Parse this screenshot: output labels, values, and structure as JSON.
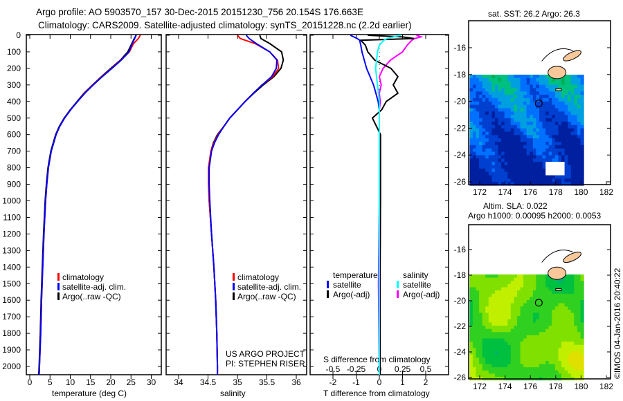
{
  "header": {
    "title_line1": "Argo profile: AO 5903570_157 30-Dec-2015 20151230_756 20.154S 176.663E",
    "title_line2": "Climatology: CARS2009. Satellite-adjusted climatology: synTS_20151228.nc (2.2d earlier)"
  },
  "colors": {
    "climatology": "#ff0000",
    "satellite": "#0000ff",
    "argo": "#000000",
    "sal_satellite": "#00ffff",
    "sal_argo": "#ff00ff",
    "land": "#f8c89a"
  },
  "chart_data": [
    {
      "type": "line",
      "title": "",
      "xlabel": "temperature (deg C)",
      "ylabel": "",
      "xlim": [
        -0.8,
        32.5
      ],
      "ylim": [
        2050,
        0
      ],
      "xticks": [
        "0",
        "5",
        "10",
        "15",
        "20",
        "25",
        "30"
      ],
      "xtick_values": [
        0,
        5,
        10,
        15,
        20,
        25,
        30
      ],
      "yticks": [
        "0",
        "100",
        "200",
        "300",
        "400",
        "500",
        "600",
        "700",
        "800",
        "900",
        "1000",
        "1100",
        "1200",
        "1300",
        "1400",
        "1500",
        "1600",
        "1700",
        "1800",
        "1900",
        "2000"
      ],
      "legend": [
        "climatology",
        "satellite-adj. clim.",
        "Argo(..raw -QC)"
      ],
      "depth": [
        0,
        20,
        50,
        100,
        150,
        200,
        250,
        300,
        350,
        400,
        450,
        500,
        550,
        600,
        700,
        800,
        900,
        1000,
        1200,
        1400,
        1600,
        1800,
        2000,
        2050
      ],
      "series": [
        {
          "name": "climatology",
          "values": [
            27.3,
            26.8,
            25.6,
            24.6,
            22.5,
            20.2,
            17.8,
            15.6,
            13.5,
            11.8,
            10.1,
            8.6,
            7.4,
            6.5,
            5.3,
            4.6,
            4.2,
            3.9,
            3.5,
            3.2,
            2.9,
            2.7,
            2.4,
            2.3
          ]
        },
        {
          "name": "satellite-adj. clim.",
          "values": [
            26.2,
            25.9,
            25.3,
            24.5,
            22.6,
            20.3,
            17.9,
            15.7,
            13.6,
            11.8,
            10.1,
            8.6,
            7.4,
            6.5,
            5.3,
            4.6,
            4.2,
            3.9,
            3.5,
            3.2,
            2.9,
            2.7,
            2.4,
            2.3
          ]
        },
        {
          "name": "Argo(..raw -QC)",
          "values": [
            26.3,
            25.8,
            25.2,
            24.2,
            22.4,
            20.0,
            17.7,
            15.5,
            13.4,
            11.7,
            10.0,
            8.5,
            7.3,
            6.4,
            5.2,
            4.5,
            4.1,
            3.8,
            3.4,
            3.1,
            2.8,
            2.6,
            2.3,
            2.2
          ]
        }
      ]
    },
    {
      "type": "line",
      "xlabel": "salinity",
      "xlim": [
        33.8,
        36.2
      ],
      "ylim": [
        2050,
        0
      ],
      "xticks": [
        "34",
        "34.5",
        "35",
        "35.5",
        "36"
      ],
      "xtick_values": [
        34,
        34.5,
        35,
        35.5,
        36
      ],
      "legend": [
        "climatology",
        "satellite-adj. clim.",
        "Argo(..raw -QC)"
      ],
      "annotation": [
        "US ARGO PROJECT",
        "PI: STEPHEN RISER"
      ],
      "depth": [
        0,
        20,
        50,
        100,
        150,
        200,
        250,
        300,
        350,
        400,
        450,
        500,
        550,
        600,
        650,
        700,
        800,
        900,
        1000,
        1200,
        1400,
        1600,
        1800,
        2000,
        2050
      ],
      "series": [
        {
          "name": "climatology",
          "values": [
            35.0,
            35.05,
            35.3,
            35.55,
            35.68,
            35.7,
            35.6,
            35.42,
            35.27,
            35.13,
            35.0,
            34.87,
            34.77,
            34.67,
            34.6,
            34.55,
            34.51,
            34.51,
            34.52,
            34.56,
            34.6,
            34.63,
            34.65,
            34.66,
            34.66
          ]
        },
        {
          "name": "satellite-adj. clim.",
          "values": [
            35.15,
            35.2,
            35.32,
            35.55,
            35.67,
            35.66,
            35.58,
            35.42,
            35.27,
            35.13,
            35.0,
            34.87,
            34.77,
            34.68,
            34.61,
            34.56,
            34.52,
            34.52,
            34.53,
            34.56,
            34.6,
            34.63,
            34.65,
            34.66,
            34.66
          ]
        },
        {
          "name": "Argo(..raw -QC)",
          "values": [
            35.38,
            35.4,
            35.55,
            35.75,
            35.78,
            35.74,
            35.62,
            35.44,
            35.28,
            35.13,
            35.0,
            34.87,
            34.77,
            34.66,
            34.59,
            34.55,
            34.51,
            34.51,
            34.52,
            34.56,
            34.6,
            34.63,
            34.65,
            34.66,
            34.66
          ]
        }
      ]
    },
    {
      "type": "line",
      "xlabel": "T difference from climatology",
      "xlabel2": "S difference from climatology",
      "xlim": [
        -3,
        3
      ],
      "ylim": [
        2050,
        0
      ],
      "xticks": [
        "-2",
        "-1",
        "0",
        "1",
        "2"
      ],
      "xtick_values": [
        -2,
        -1,
        0,
        1,
        2
      ],
      "xticks2": [
        "-0.5",
        "-0.25",
        "0",
        "0.25",
        "0.5"
      ],
      "xtick2_values": [
        -0.5,
        -0.25,
        0,
        0.25,
        0.5
      ],
      "legend_temperature": {
        "title": "temperature",
        "items": [
          "satellite",
          "Argo(-adj)"
        ]
      },
      "legend_salinity": {
        "title": "salinity",
        "items": [
          "satellite",
          "Argo(-adj)"
        ]
      },
      "depth": [
        0,
        10,
        20,
        30,
        60,
        100,
        150,
        200,
        250,
        300,
        350,
        400,
        450,
        500,
        600,
        800,
        1000,
        1500,
        2050
      ],
      "series": [
        {
          "name": "T satellite",
          "units": "T",
          "values": [
            -1.25,
            -1.1,
            -0.95,
            -0.85,
            -0.8,
            -0.75,
            -0.65,
            -0.55,
            -0.4,
            -0.25,
            -0.15,
            -0.05,
            0,
            0,
            0,
            0,
            0,
            0,
            0
          ]
        },
        {
          "name": "T Argo(-adj)",
          "units": "T",
          "values": [
            -0.5,
            1.0,
            1.5,
            -0.8,
            -0.6,
            -0.5,
            -0.2,
            0.5,
            0.8,
            0.6,
            0.8,
            0.3,
            0.1,
            -0.3,
            0.05,
            0.05,
            0.05,
            0.03,
            0.03
          ]
        },
        {
          "name": "S satellite",
          "units": "S",
          "values": [
            0.23,
            0.15,
            0.08,
            0.05,
            0.0,
            -0.02,
            -0.03,
            -0.04,
            -0.03,
            -0.02,
            -0.01,
            0,
            0,
            0,
            0,
            0,
            0,
            0,
            0
          ]
        },
        {
          "name": "S Argo(-adj)",
          "units": "S",
          "values": [
            0.4,
            0.45,
            0.38,
            0.35,
            0.3,
            0.25,
            0.12,
            0.04,
            0.0,
            0.02,
            0.0,
            0.01,
            0.0,
            0.0,
            0.0,
            0.0,
            0.0,
            -0.01,
            0.0
          ]
        }
      ]
    },
    {
      "type": "heatmap",
      "title": "sat. SST: 26.2 Argo: 26.3",
      "xticks": [
        "172",
        "174",
        "176",
        "178",
        "180",
        "182"
      ],
      "xtick_values": [
        172,
        174,
        176,
        178,
        180,
        182
      ],
      "yticks": [
        "-16",
        "-18",
        "-20",
        "-22",
        "-24",
        "-26"
      ],
      "ytick_values": [
        -16,
        -18,
        -20,
        -22,
        -24,
        -26
      ],
      "argo_position": {
        "lon": 176.663,
        "lat": -20.154
      }
    },
    {
      "type": "heatmap",
      "title_line1": "Altim. SLA: 0.022",
      "title_line2": "Argo h1000: 0.00095 h2000: 0.0053",
      "xticks": [
        "172",
        "174",
        "176",
        "178",
        "180",
        "182"
      ],
      "xtick_values": [
        172,
        174,
        176,
        178,
        180,
        182
      ],
      "yticks": [
        "-16",
        "-18",
        "-20",
        "-22",
        "-24",
        "-26"
      ],
      "ytick_values": [
        -16,
        -18,
        -20,
        -22,
        -24,
        -26
      ],
      "argo_position": {
        "lon": 176.663,
        "lat": -20.154
      }
    }
  ],
  "footer": {
    "credit": "©IMOS 04-Jan-2016 20:40:22"
  }
}
